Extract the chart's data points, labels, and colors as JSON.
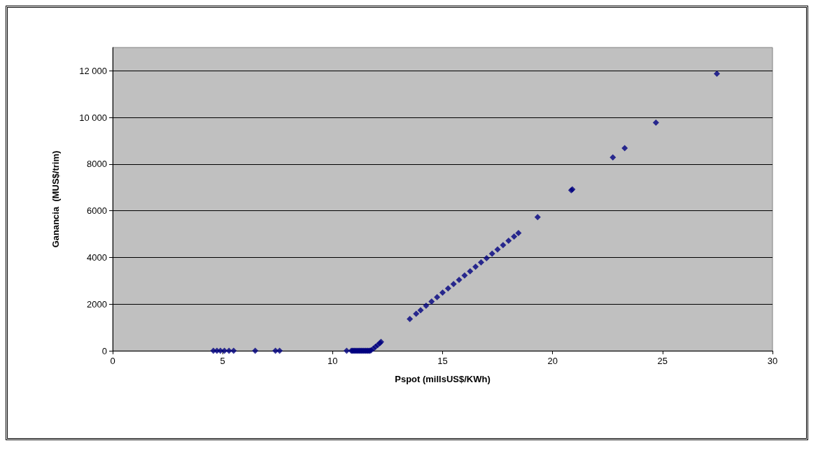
{
  "chart_data": {
    "type": "scatter",
    "xlabel": "Pspot (millsUS$/KWh)",
    "ylabel": "Ganancia  (MUS$/trim)",
    "x": [
      4.58,
      4.74,
      4.9,
      5.08,
      5.29,
      5.5,
      6.48,
      7.4,
      7.59,
      10.64,
      10.85,
      10.9,
      10.95,
      11.0,
      11.05,
      11.1,
      11.15,
      11.2,
      11.25,
      11.3,
      11.35,
      11.4,
      11.45,
      11.5,
      11.55,
      11.6,
      11.65,
      11.7,
      11.75,
      11.85,
      11.95,
      12.05,
      12.15,
      12.2,
      13.51,
      13.8,
      14.0,
      14.25,
      14.5,
      14.75,
      15.0,
      15.25,
      15.5,
      15.75,
      16.0,
      16.25,
      16.5,
      16.75,
      17.0,
      17.25,
      17.5,
      17.75,
      18.0,
      18.25,
      18.45,
      19.32,
      20.85,
      20.9,
      22.74,
      23.28,
      24.7,
      27.47
    ],
    "series": [
      {
        "color": "#000080",
        "values": [
          0,
          0,
          0,
          0,
          0,
          0,
          0,
          0,
          0,
          0,
          0,
          0,
          0,
          0,
          0,
          0,
          0,
          0,
          0,
          0,
          0,
          0,
          0,
          0,
          0,
          0,
          0,
          0,
          20,
          90,
          170,
          250,
          330,
          380,
          1360,
          1590,
          1740,
          1930,
          2110,
          2300,
          2490,
          2670,
          2860,
          3040,
          3230,
          3410,
          3600,
          3790,
          3970,
          4160,
          4340,
          4530,
          4720,
          4900,
          5050,
          5730,
          6880,
          6920,
          8290,
          8690,
          9780,
          11880
        ]
      }
    ],
    "xlim": [
      0,
      30
    ],
    "xticks": [
      0,
      5,
      10,
      15,
      20,
      25,
      30
    ],
    "ylim": [
      0,
      13000
    ],
    "yticks": [
      0,
      2000,
      4000,
      6000,
      8000,
      {
        "value": 10000,
        "label": "10 000"
      },
      {
        "value": 12000,
        "label": "12 000"
      }
    ],
    "grid": "y",
    "marker": "diamond"
  }
}
